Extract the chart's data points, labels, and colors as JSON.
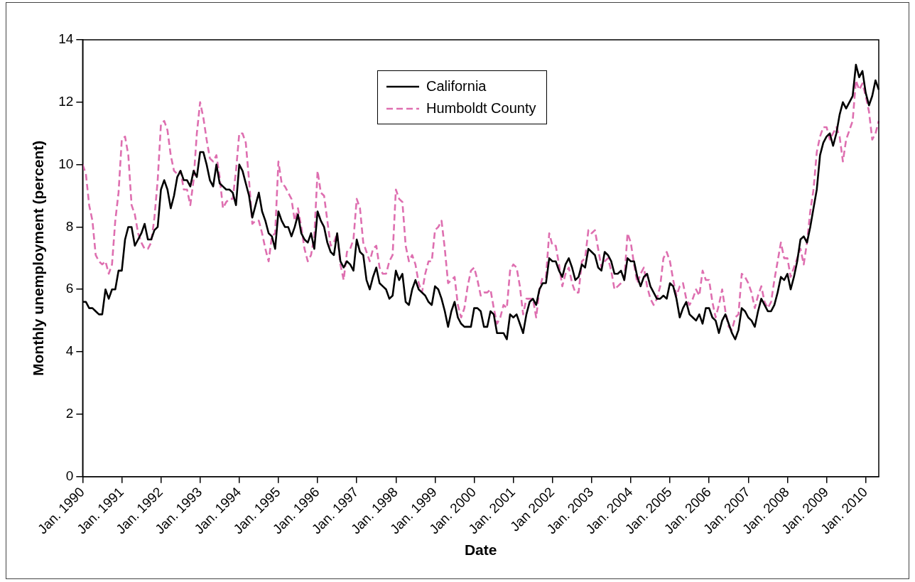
{
  "chart_data": {
    "type": "line",
    "xlabel": "Date",
    "ylabel": "Monthly unemployment (percent)",
    "categories": [
      "Jan. 1990",
      null,
      null,
      null,
      null,
      null,
      null,
      null,
      null,
      null,
      null,
      null,
      "Jan. 1991",
      null,
      null,
      null,
      null,
      null,
      null,
      null,
      null,
      null,
      null,
      null,
      "Jan. 1992",
      null,
      null,
      null,
      null,
      null,
      null,
      null,
      null,
      null,
      null,
      null,
      "Jan. 1993",
      null,
      null,
      null,
      null,
      null,
      null,
      null,
      null,
      null,
      null,
      null,
      "Jan. 1994",
      null,
      null,
      null,
      null,
      null,
      null,
      null,
      null,
      null,
      null,
      null,
      "Jan. 1995",
      null,
      null,
      null,
      null,
      null,
      null,
      null,
      null,
      null,
      null,
      null,
      "Jan. 1996",
      null,
      null,
      null,
      null,
      null,
      null,
      null,
      null,
      null,
      null,
      null,
      "Jan. 1997",
      null,
      null,
      null,
      null,
      null,
      null,
      null,
      null,
      null,
      null,
      null,
      "Jan. 1998",
      null,
      null,
      null,
      null,
      null,
      null,
      null,
      null,
      null,
      null,
      null,
      "Jan. 1999",
      null,
      null,
      null,
      null,
      null,
      null,
      null,
      null,
      null,
      null,
      null,
      "Jan. 2000",
      null,
      null,
      null,
      null,
      null,
      null,
      null,
      null,
      null,
      null,
      null,
      "Jan. 2001",
      null,
      null,
      null,
      null,
      null,
      null,
      null,
      null,
      null,
      null,
      null,
      "Jan 2002",
      null,
      null,
      null,
      null,
      null,
      null,
      null,
      null,
      null,
      null,
      null,
      "Jan. 2003",
      null,
      null,
      null,
      null,
      null,
      null,
      null,
      null,
      null,
      null,
      null,
      "Jan. 2004",
      null,
      null,
      null,
      null,
      null,
      null,
      null,
      null,
      null,
      null,
      null,
      "Jan. 2005",
      null,
      null,
      null,
      null,
      null,
      null,
      null,
      null,
      null,
      null,
      null,
      "Jan. 2006",
      null,
      null,
      null,
      null,
      null,
      null,
      null,
      null,
      null,
      null,
      null,
      "Jan. 2007",
      null,
      null,
      null,
      null,
      null,
      null,
      null,
      null,
      null,
      null,
      null,
      "Jan. 2008",
      null,
      null,
      null,
      null,
      null,
      null,
      null,
      null,
      null,
      null,
      null,
      "Jan. 2009",
      null,
      null,
      null,
      null,
      null,
      null,
      null,
      null,
      null,
      null,
      null,
      "Jan. 2010",
      null,
      null,
      null,
      null
    ],
    "series": [
      {
        "name": "California",
        "color": "#000000",
        "line_style": "solid",
        "values": [
          5.6,
          5.6,
          5.4,
          5.4,
          5.3,
          5.2,
          5.2,
          6.0,
          5.7,
          6.0,
          6.0,
          6.6,
          6.6,
          7.6,
          8.0,
          8.0,
          7.4,
          7.6,
          7.8,
          8.1,
          7.6,
          7.6,
          7.9,
          8.0,
          9.2,
          9.5,
          9.2,
          8.6,
          9.0,
          9.6,
          9.8,
          9.5,
          9.5,
          9.3,
          9.8,
          9.6,
          10.4,
          10.4,
          10.0,
          9.5,
          9.3,
          10.0,
          9.4,
          9.3,
          9.2,
          9.2,
          9.1,
          8.7,
          10.0,
          9.8,
          9.4,
          9.0,
          8.3,
          8.7,
          9.1,
          8.5,
          8.2,
          7.8,
          7.7,
          7.3,
          8.5,
          8.2,
          8.0,
          8.0,
          7.7,
          8.0,
          8.4,
          7.8,
          7.6,
          7.5,
          7.8,
          7.3,
          8.5,
          8.2,
          8.0,
          7.5,
          7.2,
          7.1,
          7.8,
          6.9,
          6.7,
          6.9,
          6.8,
          6.6,
          7.6,
          7.2,
          7.1,
          6.3,
          6.0,
          6.4,
          6.7,
          6.2,
          6.1,
          6.0,
          5.7,
          5.8,
          6.6,
          6.3,
          6.5,
          5.6,
          5.5,
          6.0,
          6.3,
          6.0,
          5.9,
          5.8,
          5.6,
          5.5,
          6.1,
          6.0,
          5.7,
          5.3,
          4.8,
          5.3,
          5.6,
          5.1,
          4.9,
          4.8,
          4.8,
          4.8,
          5.4,
          5.4,
          5.3,
          4.8,
          4.8,
          5.3,
          5.2,
          4.6,
          4.6,
          4.6,
          4.4,
          5.2,
          5.1,
          5.2,
          4.9,
          4.6,
          5.2,
          5.6,
          5.7,
          5.5,
          6.0,
          6.2,
          6.2,
          7.0,
          6.9,
          6.9,
          6.6,
          6.4,
          6.8,
          7.0,
          6.7,
          6.3,
          6.4,
          6.8,
          6.7,
          7.3,
          7.2,
          7.1,
          6.7,
          6.6,
          7.2,
          7.1,
          6.9,
          6.5,
          6.5,
          6.6,
          6.3,
          7.0,
          6.9,
          6.9,
          6.4,
          6.1,
          6.4,
          6.5,
          6.1,
          5.9,
          5.7,
          5.7,
          5.8,
          5.7,
          6.2,
          6.1,
          5.7,
          5.1,
          5.4,
          5.6,
          5.2,
          5.1,
          5.0,
          5.2,
          4.9,
          5.4,
          5.4,
          5.1,
          5.0,
          4.6,
          5.0,
          5.2,
          4.9,
          4.6,
          4.4,
          4.7,
          5.4,
          5.3,
          5.1,
          5.0,
          4.8,
          5.3,
          5.7,
          5.5,
          5.3,
          5.3,
          5.5,
          5.9,
          6.4,
          6.3,
          6.5,
          6.0,
          6.4,
          6.9,
          7.6,
          7.7,
          7.5,
          8.0,
          8.6,
          9.2,
          10.3,
          10.7,
          10.9,
          11.0,
          10.6,
          11.0,
          11.6,
          12.0,
          11.8,
          12.0,
          12.2,
          13.2,
          12.8,
          13.0,
          12.3,
          11.9,
          12.2,
          12.7,
          12.4
        ]
      },
      {
        "name": "Humboldt County",
        "color": "#de6fb0",
        "line_style": "dashed",
        "values": [
          10.0,
          9.7,
          8.7,
          8.2,
          7.1,
          6.9,
          6.8,
          6.9,
          6.5,
          6.8,
          8.2,
          9.1,
          10.8,
          10.9,
          10.3,
          8.7,
          8.4,
          7.8,
          7.5,
          7.3,
          7.3,
          7.5,
          8.3,
          9.5,
          11.3,
          11.4,
          11.1,
          10.3,
          9.8,
          9.7,
          9.8,
          9.2,
          9.2,
          8.7,
          9.5,
          11.0,
          12.0,
          11.5,
          10.8,
          10.2,
          10.1,
          10.3,
          9.6,
          8.6,
          8.8,
          8.9,
          8.9,
          9.8,
          11.0,
          11.0,
          10.7,
          9.5,
          8.1,
          8.2,
          8.2,
          7.8,
          7.3,
          6.9,
          7.7,
          7.8,
          10.1,
          9.4,
          9.3,
          9.1,
          8.9,
          8.2,
          8.6,
          8.0,
          7.3,
          6.9,
          7.1,
          7.7,
          9.8,
          9.1,
          9.0,
          8.2,
          7.4,
          7.5,
          7.8,
          6.8,
          6.3,
          7.2,
          7.3,
          7.6,
          8.9,
          8.6,
          7.5,
          7.2,
          6.9,
          7.3,
          7.4,
          6.7,
          6.5,
          6.5,
          6.9,
          7.1,
          9.2,
          8.9,
          8.8,
          7.4,
          6.9,
          7.1,
          6.8,
          6.2,
          5.9,
          6.5,
          6.9,
          6.9,
          7.9,
          8.0,
          8.2,
          7.3,
          6.2,
          6.3,
          6.4,
          5.5,
          5.1,
          5.4,
          6.1,
          6.6,
          6.7,
          6.3,
          5.8,
          5.9,
          5.9,
          6.0,
          5.4,
          4.9,
          5.1,
          5.5,
          5.4,
          6.6,
          6.8,
          6.7,
          6.1,
          5.2,
          5.7,
          5.7,
          5.7,
          5.1,
          6.0,
          6.4,
          6.4,
          7.8,
          7.4,
          7.4,
          6.8,
          6.1,
          6.5,
          6.7,
          6.2,
          5.9,
          5.9,
          6.9,
          7.0,
          7.9,
          7.8,
          7.9,
          7.3,
          6.7,
          6.9,
          7.0,
          6.6,
          6.0,
          6.1,
          6.2,
          6.3,
          7.8,
          7.5,
          6.8,
          6.2,
          6.5,
          6.7,
          6.1,
          5.7,
          5.5,
          5.7,
          6.1,
          7.0,
          7.2,
          6.9,
          6.3,
          5.8,
          6.1,
          6.2,
          5.7,
          5.5,
          5.7,
          6.0,
          5.8,
          6.6,
          6.3,
          6.3,
          5.6,
          5.1,
          5.5,
          6.0,
          5.3,
          4.8,
          4.7,
          5.1,
          5.2,
          6.5,
          6.4,
          6.2,
          5.9,
          5.4,
          5.8,
          6.1,
          5.6,
          5.4,
          5.6,
          6.3,
          6.9,
          7.5,
          7.0,
          7.0,
          6.4,
          6.7,
          7.0,
          7.3,
          6.8,
          7.5,
          8.5,
          9.2,
          10.4,
          10.9,
          11.2,
          11.2,
          10.8,
          11.0,
          11.2,
          10.9,
          10.1,
          10.8,
          11.1,
          11.4,
          12.7,
          12.4,
          12.6,
          12.2,
          11.7,
          10.8,
          11.0,
          11.4
        ]
      }
    ],
    "ylim": [
      0,
      14
    ],
    "yticks": [
      0,
      2,
      4,
      6,
      8,
      10,
      12,
      14
    ],
    "grid": false,
    "legend": "top",
    "marker": "none"
  }
}
